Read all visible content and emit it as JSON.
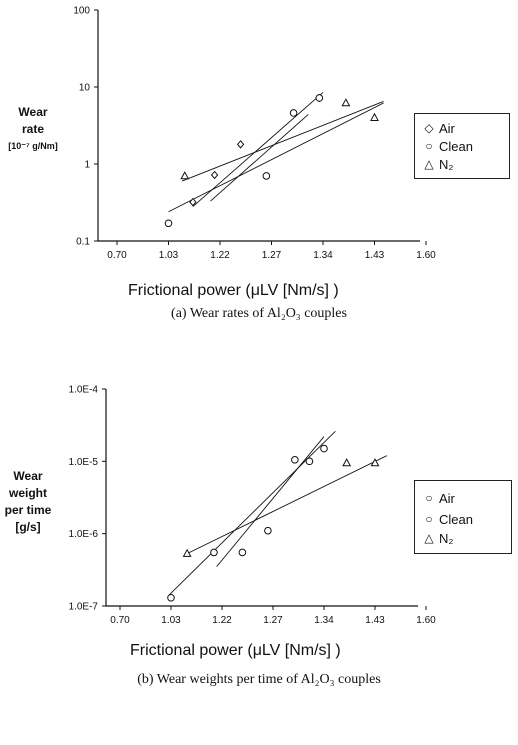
{
  "chart_data": [
    {
      "type": "scatter",
      "y_scale": "log",
      "ylim": [
        0.1,
        100
      ],
      "xlim": [
        0.65,
        1.65
      ],
      "y_ticks": [
        "0.1",
        "1",
        "10",
        "100"
      ],
      "x_ticks": [
        "0.70",
        "1.03",
        "1.22",
        "1.27",
        "1.34",
        "1.43",
        "1.60"
      ],
      "ylabel_line1": "Wear",
      "ylabel_line2": "rate",
      "ylabel_unit": "[10⁻⁷ g/Nm]",
      "xlabel": "Frictional power (μLV [Nm/s] )",
      "caption": "(a) Wear rates of Al₂O₃ couples",
      "series": [
        {
          "name": "Air",
          "marker": "diamond",
          "x": [
            1.12,
            1.2,
            1.24,
            1.335
          ],
          "y": [
            0.32,
            0.72,
            1.8,
            7.2
          ],
          "fit": {
            "x": [
              1.12,
              1.34
            ],
            "y": [
              0.28,
              8.5
            ]
          }
        },
        {
          "name": "Clean",
          "marker": "circle",
          "x": [
            1.03,
            1.265,
            1.3,
            1.335
          ],
          "y": [
            0.17,
            0.7,
            4.6,
            7.2
          ],
          "fit": {
            "x": [
              1.185,
              1.32
            ],
            "y": [
              0.33,
              4.4
            ]
          }
        },
        {
          "name": "N₂",
          "marker": "triangle",
          "x": [
            1.09,
            1.38,
            1.43
          ],
          "y": [
            0.7,
            6.2,
            4.0
          ],
          "fit": {
            "x": [
              1.08,
              1.46
            ],
            "y": [
              0.6,
              6.5
            ]
          }
        }
      ],
      "extra_fit": {
        "x": [
          1.03,
          1.46
        ],
        "y": [
          0.24,
          6.2
        ]
      }
    },
    {
      "type": "scatter",
      "y_scale": "log",
      "ylim": [
        1e-07,
        0.0001
      ],
      "xlim": [
        0.65,
        1.65
      ],
      "y_ticks": [
        "1.0E-7",
        "1.0E-6",
        "1.0E-5",
        "1.0E-4"
      ],
      "x_ticks": [
        "0.70",
        "1.03",
        "1.22",
        "1.27",
        "1.34",
        "1.43",
        "1.60"
      ],
      "ylabel_line1": "Wear",
      "ylabel_line2": "weight",
      "ylabel_line3": "per time",
      "ylabel_unit": "[g/s]",
      "xlabel": "Frictional power (μLV [Nm/s] )",
      "caption": "(b) Wear weights per time of Al₂O₃ couples",
      "series": [
        {
          "name": "Air",
          "marker": "circle",
          "x": [
            1.19,
            1.24,
            1.32,
            1.34
          ],
          "y": [
            5.5e-07,
            5.5e-07,
            1e-05,
            1.5e-05
          ],
          "fit": {
            "x": [
              1.015,
              1.36
            ],
            "y": [
              1.4e-07,
              2.6e-05
            ]
          }
        },
        {
          "name": "Clean",
          "marker": "circle",
          "x": [
            1.03,
            1.265,
            1.3
          ],
          "y": [
            1.3e-07,
            1.1e-06,
            1.05e-05
          ],
          "fit": {
            "x": [
              1.2,
              1.34
            ],
            "y": [
              3.5e-07,
              2.2e-05
            ]
          }
        },
        {
          "name": "N₂",
          "marker": "triangle",
          "x": [
            1.09,
            1.38,
            1.43
          ],
          "y": [
            5.3e-07,
            9.5e-06,
            9.5e-06
          ],
          "fit": {
            "x": [
              1.09,
              1.47
            ],
            "y": [
              5.3e-07,
              1.2e-05
            ]
          }
        }
      ]
    }
  ]
}
